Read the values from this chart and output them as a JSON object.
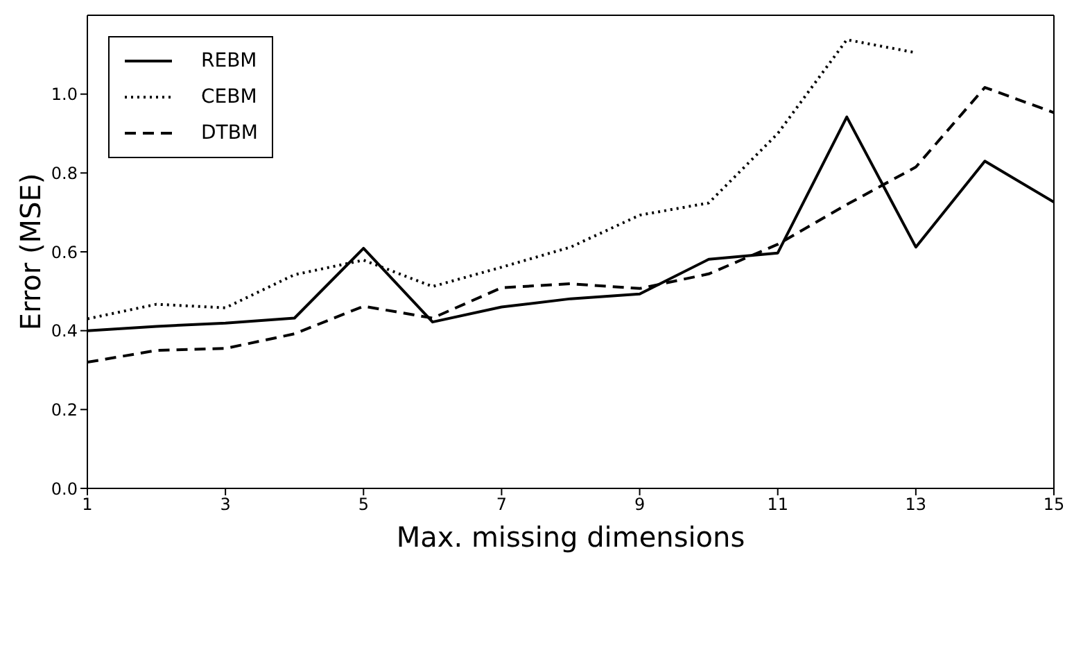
{
  "chart_data": {
    "type": "line",
    "xlabel": "Max. missing dimensions",
    "ylabel": "Error (MSE)",
    "x": [
      1,
      2,
      3,
      4,
      5,
      6,
      7,
      8,
      9,
      10,
      11,
      12,
      13,
      14,
      15
    ],
    "xlim": [
      1,
      15
    ],
    "xticks": [
      1,
      3,
      5,
      7,
      9,
      11,
      13,
      15
    ],
    "ylim": [
      0,
      1.2
    ],
    "yticks": [
      {
        "value": 0,
        "label": "0.0"
      },
      {
        "value": 0.2,
        "label": "0.2"
      },
      {
        "value": 0.4,
        "label": "0.4"
      },
      {
        "value": 0.6,
        "label": "0.6"
      },
      {
        "value": 0.8,
        "label": "0.8"
      },
      {
        "value": 1,
        "label": "1.0"
      }
    ],
    "grid": false,
    "legend": "top left",
    "marker": "none",
    "series": [
      {
        "name": "REBM",
        "color": "#000000",
        "line_style": "solid",
        "values": [
          0.4,
          0.411,
          0.419,
          0.432,
          0.609,
          0.422,
          0.46,
          0.481,
          0.493,
          0.581,
          0.597,
          0.942,
          0.612,
          0.83,
          0.726
        ]
      },
      {
        "name": "CEBM",
        "color": "#000000",
        "line_style": "dotted",
        "values": [
          0.43,
          0.467,
          0.458,
          0.542,
          0.579,
          0.512,
          0.561,
          0.612,
          0.693,
          0.724,
          0.9,
          1.138,
          1.105,
          null,
          null
        ]
      },
      {
        "name": "DTBM",
        "color": "#000000",
        "line_style": "dashed",
        "values": [
          0.32,
          0.35,
          0.355,
          0.392,
          0.462,
          0.432,
          0.509,
          0.519,
          0.507,
          0.544,
          0.619,
          0.72,
          0.815,
          1.017,
          0.953
        ]
      }
    ]
  }
}
